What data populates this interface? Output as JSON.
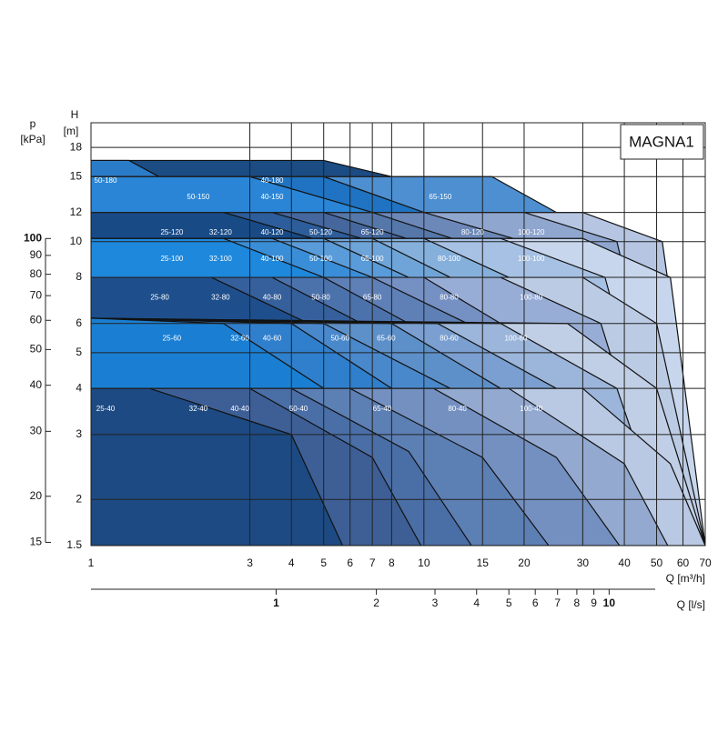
{
  "chart_data": {
    "type": "area",
    "annotation": "MAGNA1",
    "xlabel": "Q [m³/h]",
    "x2label": "Q [l/s]",
    "ylabel": [
      "H",
      "[m]"
    ],
    "y2label": [
      "p",
      "[kPa]"
    ],
    "log": true,
    "grid": true,
    "xlim": [
      1,
      70
    ],
    "xticks": [
      1,
      3,
      4,
      5,
      6,
      7,
      8,
      10,
      15,
      20,
      30,
      40,
      50,
      60,
      70
    ],
    "x2lim": [
      0.278,
      19.44
    ],
    "x2ticks": [
      1,
      2,
      3,
      4,
      5,
      6,
      7,
      8,
      9,
      10
    ],
    "ylim": [
      1.5,
      21
    ],
    "yticks": [
      1.5,
      2,
      3,
      4,
      5,
      6,
      8,
      10,
      12,
      15,
      18
    ],
    "y2lim": [
      14.7,
      206
    ],
    "y2ticks": [
      15,
      20,
      30,
      40,
      50,
      60,
      70,
      80,
      90,
      100
    ],
    "series": [
      {
        "name": "40-180",
        "color": "#1b4c84",
        "x": [
          1,
          5,
          8,
          18
        ],
        "values": [
          16.6,
          16.6,
          15,
          1.5
        ]
      },
      {
        "name": "50-180",
        "color": "#2b7cc8",
        "x": [
          1,
          1.3,
          1.6,
          4
        ],
        "values": [
          16.6,
          16.6,
          15,
          1.5
        ]
      },
      {
        "name": "65-150",
        "color": "#4d8fd0",
        "x": [
          1,
          16,
          25,
          45
        ],
        "values": [
          15,
          15,
          12,
          1.5
        ]
      },
      {
        "name": "40-150",
        "color": "#1f73c2",
        "x": [
          1,
          5,
          10,
          16
        ],
        "values": [
          15,
          15,
          12,
          1.5
        ]
      },
      {
        "name": "50-150",
        "color": "#2a85d6",
        "x": [
          1,
          3,
          7,
          20
        ],
        "values": [
          15,
          15,
          12,
          1.5
        ]
      },
      {
        "name": "100-120",
        "color": "#b5c5e2",
        "x": [
          1,
          30,
          52,
          70
        ],
        "values": [
          12,
          12,
          10,
          1.5
        ]
      },
      {
        "name": "80-120",
        "color": "#8fa6cf",
        "x": [
          1,
          20,
          38,
          62
        ],
        "values": [
          12,
          12,
          10,
          1.5
        ]
      },
      {
        "name": "65-120",
        "color": "#6c88b8",
        "x": [
          1,
          10,
          20,
          35
        ],
        "values": [
          12,
          12,
          10,
          1.5
        ]
      },
      {
        "name": "50-120",
        "color": "#5577a9",
        "x": [
          1,
          7,
          13,
          22
        ],
        "values": [
          12,
          12,
          10,
          1.5
        ]
      },
      {
        "name": "40-120",
        "color": "#45679d",
        "x": [
          1,
          5,
          9.5,
          17
        ],
        "values": [
          12,
          12,
          10,
          1.5
        ]
      },
      {
        "name": "32-120",
        "color": "#2d5d9a",
        "x": [
          1,
          3.5,
          7,
          13
        ],
        "values": [
          12,
          12,
          10,
          1.5
        ]
      },
      {
        "name": "25-120",
        "color": "#184a86",
        "x": [
          1,
          2.5,
          5,
          10
        ],
        "values": [
          12,
          12,
          10,
          1.5
        ]
      },
      {
        "name": "100-100",
        "color": "#c7d6ec",
        "x": [
          1,
          30,
          55,
          70
        ],
        "values": [
          10.2,
          10.2,
          8,
          1.5
        ]
      },
      {
        "name": "80-100",
        "color": "#a6c1e3",
        "x": [
          1,
          17,
          35,
          58
        ],
        "values": [
          10.2,
          10.2,
          8,
          1.5
        ]
      },
      {
        "name": "65-100",
        "color": "#86b0dc",
        "x": [
          1,
          10,
          18,
          32
        ],
        "values": [
          10.2,
          10.2,
          8,
          1.5
        ]
      },
      {
        "name": "50-100",
        "color": "#6fa4d8",
        "x": [
          1,
          7,
          12,
          20
        ],
        "values": [
          10.2,
          10.2,
          8,
          1.5
        ]
      },
      {
        "name": "40-100",
        "color": "#5a9bd9",
        "x": [
          1,
          5,
          9,
          16
        ],
        "values": [
          10.2,
          10.2,
          8,
          1.5
        ]
      },
      {
        "name": "32-100",
        "color": "#3a8ed8",
        "x": [
          1,
          3.5,
          7,
          12
        ],
        "values": [
          10.2,
          10.2,
          8,
          1.5
        ]
      },
      {
        "name": "25-100",
        "color": "#1e88dc",
        "x": [
          1,
          2.5,
          5,
          9
        ],
        "values": [
          10.2,
          10.2,
          8,
          1.5
        ]
      },
      {
        "name": "100-80",
        "color": "#bccbe4",
        "x": [
          1,
          30,
          50,
          70
        ],
        "values": [
          8,
          8,
          6,
          1.5
        ]
      },
      {
        "name": "80-80",
        "color": "#98add6",
        "x": [
          1,
          17,
          34,
          55
        ],
        "values": [
          8,
          8,
          6,
          1.5
        ]
      },
      {
        "name": "65-80",
        "color": "#7590c2",
        "x": [
          1,
          10,
          17,
          30
        ],
        "values": [
          8,
          8,
          6,
          1.5
        ]
      },
      {
        "name": "50-80",
        "color": "#5e80b6",
        "x": [
          1,
          7,
          13.5,
          22
        ],
        "values": [
          8,
          8,
          6,
          1.5
        ]
      },
      {
        "name": "40-80",
        "color": "#4c72ac",
        "x": [
          1,
          5,
          9,
          15
        ],
        "values": [
          8,
          8,
          6,
          1.5
        ]
      },
      {
        "name": "32-80",
        "color": "#35609c",
        "x": [
          1,
          3.5,
          6.5,
          11
        ],
        "values": [
          8,
          8,
          6,
          1.5
        ]
      },
      {
        "name": "25-80",
        "color": "#1e4f8c",
        "x": [
          1,
          2.3,
          4.5,
          8
        ],
        "values": [
          8,
          8,
          6,
          1.5
        ]
      },
      {
        "name": "100-60",
        "color": "#c1cfe6",
        "x": [
          1,
          27,
          50,
          70
        ],
        "values": [
          6.2,
          6,
          4,
          1.5
        ]
      },
      {
        "name": "80-60",
        "color": "#9cb5da",
        "x": [
          1,
          17,
          38,
          55
        ],
        "values": [
          6.2,
          6,
          4,
          1.5
        ]
      },
      {
        "name": "65-60",
        "color": "#7a9fd0",
        "x": [
          1,
          11,
          25,
          40
        ],
        "values": [
          6.2,
          6,
          4,
          1.5
        ]
      },
      {
        "name": "50-60",
        "color": "#5d90c8",
        "x": [
          1,
          8,
          17,
          25
        ],
        "values": [
          6.2,
          6,
          4,
          1.5
        ]
      },
      {
        "name": "40-60",
        "color": "#4a88cc",
        "x": [
          1,
          5,
          12,
          16
        ],
        "values": [
          6.2,
          6,
          4,
          1.5
        ]
      },
      {
        "name": "32-60",
        "color": "#2f7fcc",
        "x": [
          1,
          4,
          8,
          11
        ],
        "values": [
          6.2,
          6,
          4,
          1.5
        ]
      },
      {
        "name": "25-60",
        "color": "#1a7fd2",
        "x": [
          1,
          2.5,
          5,
          7
        ],
        "values": [
          6.2,
          6,
          4,
          1.5
        ]
      },
      {
        "name": "100-40",
        "color": "#b9c8e3",
        "x": [
          1,
          30,
          55,
          70
        ],
        "values": [
          4,
          4,
          2.5,
          1.5
        ]
      },
      {
        "name": "80-40",
        "color": "#93a9d0",
        "x": [
          1,
          18,
          40,
          54
        ],
        "values": [
          4,
          4,
          2.5,
          1.5
        ]
      },
      {
        "name": "65-40",
        "color": "#7390c0",
        "x": [
          1,
          10.7,
          25,
          38.7
        ],
        "values": [
          4,
          4,
          2.6,
          1.5
        ]
      },
      {
        "name": "50-40",
        "color": "#5c7fb4",
        "x": [
          1,
          6,
          15,
          23.7
        ],
        "values": [
          4,
          4,
          2.6,
          1.5
        ]
      },
      {
        "name": "40-40",
        "color": "#4a6ea6",
        "x": [
          1,
          4,
          9,
          13.9
        ],
        "values": [
          4,
          4,
          2.7,
          1.5
        ]
      },
      {
        "name": "32-40",
        "color": "#3d5f96",
        "x": [
          1,
          3,
          7,
          9.8
        ],
        "values": [
          4,
          4,
          2.6,
          1.5
        ]
      },
      {
        "name": "25-40",
        "color": "#1d4a82",
        "x": [
          1,
          1.5,
          4,
          5.7
        ],
        "values": [
          4,
          4,
          3,
          1.5
        ]
      }
    ]
  }
}
